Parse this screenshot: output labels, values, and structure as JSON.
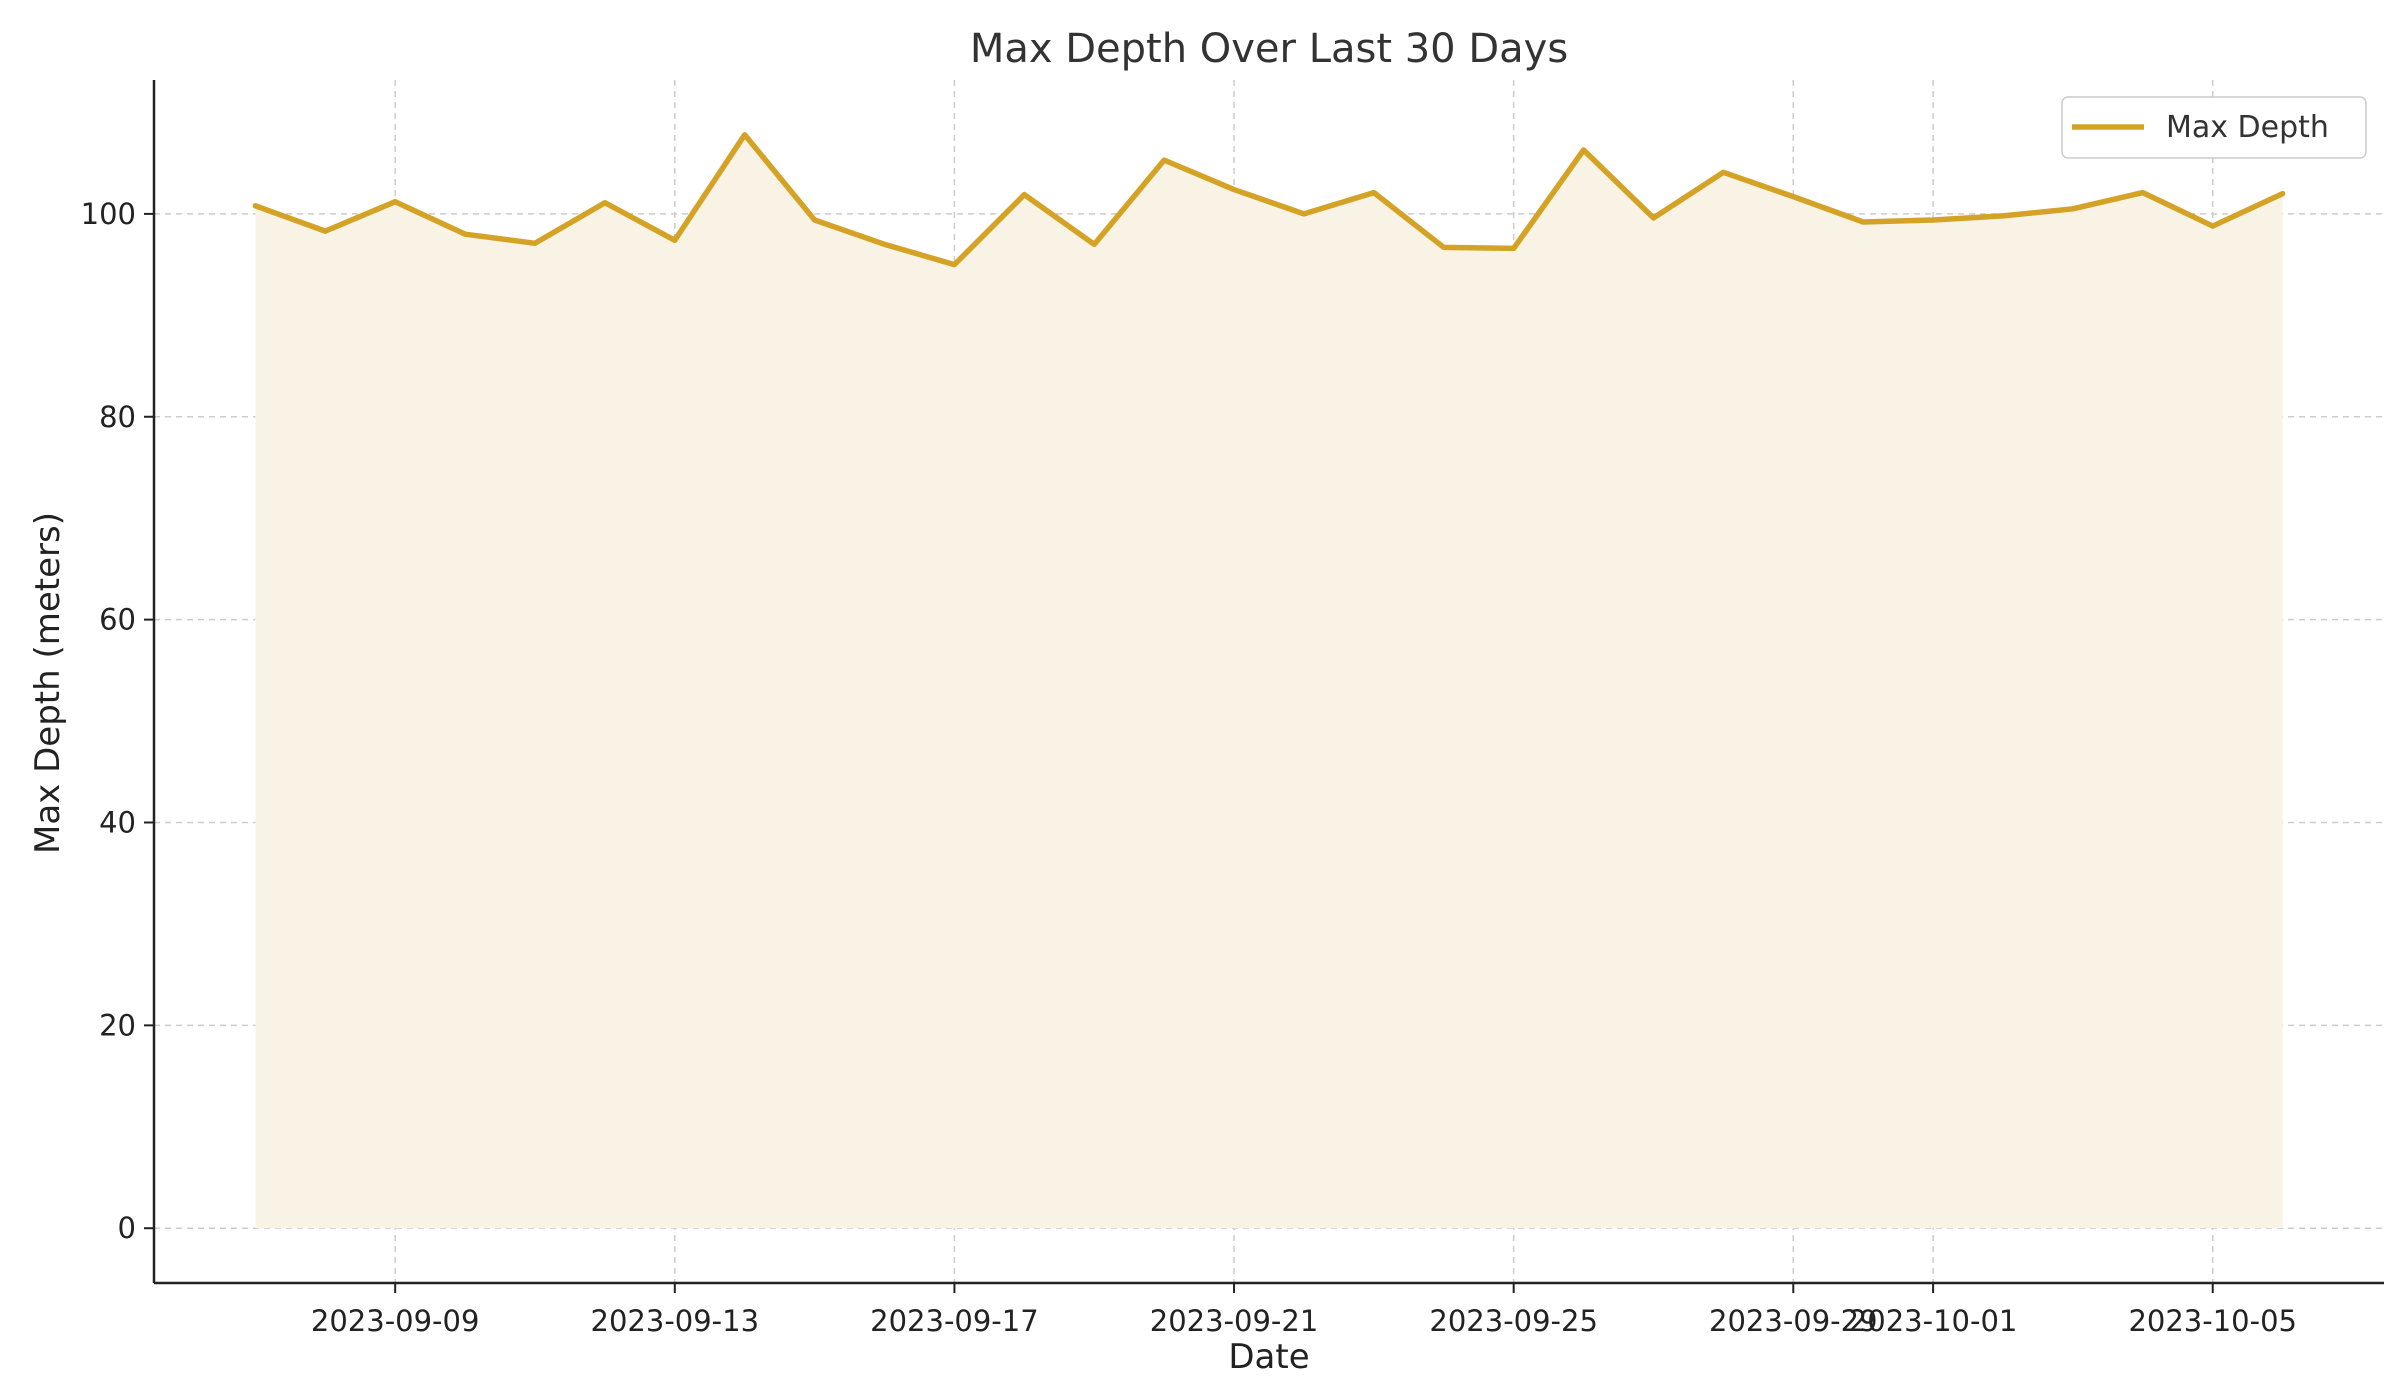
{
  "chart_data": {
    "type": "line",
    "title": "Max Depth Over Last 30 Days",
    "xlabel": "Date",
    "ylabel": "Max Depth (meters)",
    "x": [
      "2023-09-07",
      "2023-09-08",
      "2023-09-09",
      "2023-09-10",
      "2023-09-11",
      "2023-09-12",
      "2023-09-13",
      "2023-09-14",
      "2023-09-15",
      "2023-09-16",
      "2023-09-17",
      "2023-09-18",
      "2023-09-19",
      "2023-09-20",
      "2023-09-21",
      "2023-09-22",
      "2023-09-23",
      "2023-09-24",
      "2023-09-25",
      "2023-09-26",
      "2023-09-27",
      "2023-09-28",
      "2023-09-29",
      "2023-09-30",
      "2023-10-01",
      "2023-10-02",
      "2023-10-03",
      "2023-10-04",
      "2023-10-05",
      "2023-10-06"
    ],
    "series": [
      {
        "name": "Max Depth",
        "values": [
          100.8,
          98.3,
          101.2,
          98.0,
          97.1,
          101.1,
          97.4,
          107.8,
          99.4,
          97.0,
          95.0,
          101.9,
          97.0,
          105.3,
          102.4,
          100.0,
          102.1,
          96.7,
          96.6,
          106.3,
          99.6,
          104.1,
          101.7,
          99.2,
          99.4,
          99.8,
          100.5,
          102.1,
          98.8,
          102.0
        ]
      }
    ],
    "x_tick_labels": [
      "2023-09-09",
      "2023-09-13",
      "2023-09-17",
      "2023-09-21",
      "2023-09-25",
      "2023-09-29",
      "2023-10-01",
      "2023-10-05"
    ],
    "y_ticks": [
      0,
      20,
      40,
      60,
      80,
      100
    ],
    "ylim": [
      -5.4,
      113.2
    ],
    "xlim": [
      "2023-09-05T13:12",
      "2023-10-07T10:48"
    ],
    "grid": true,
    "legend_position": "top-right",
    "line_color": "#D4A326",
    "fill_color": "#F9F3E6"
  }
}
